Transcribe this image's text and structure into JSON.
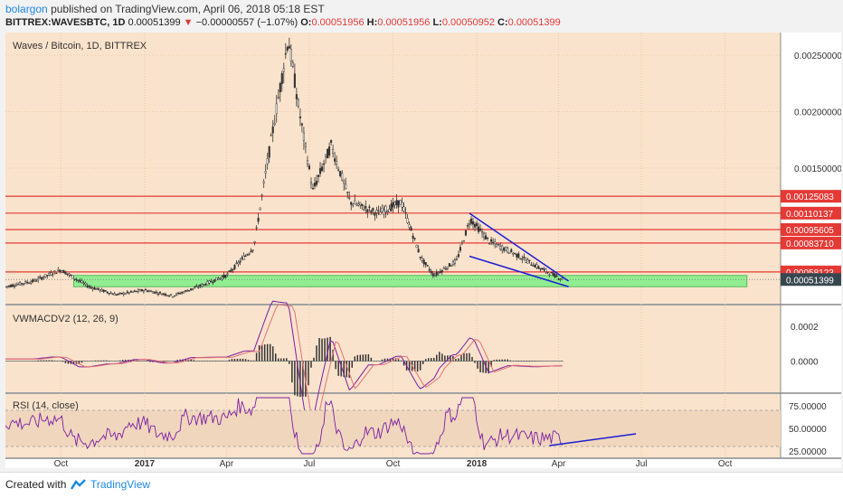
{
  "header": {
    "user": "bolargon",
    "published": "published on TradingView.com, April 06, 2018 05:18 EST",
    "symbol": "BITTREX:WAVESBTC, 1D",
    "last": "0.00051399",
    "change_arrow": "▼",
    "change": "−0.00000557 (−1.07%)",
    "o_label": "O:",
    "o": "0.00051956",
    "h_label": "H:",
    "h": "0.00051956",
    "l_label": "L:",
    "l": "0.00050952",
    "c_label": "C:",
    "c": "0.00051399"
  },
  "footer": {
    "created_with": "Created with",
    "brand": "TradingView"
  },
  "chart_data": [
    {
      "type": "candlestick",
      "title": "Waves / Bitcoin, 1D, BITTREX",
      "x_tick_labels": [
        "Oct",
        "2017",
        "Apr",
        "Jul",
        "Oct",
        "2018",
        "Apr",
        "Jul",
        "Oct"
      ],
      "x_tick_bold": [
        false,
        true,
        false,
        false,
        false,
        true,
        false,
        false,
        false
      ],
      "y_ticks": [
        0.0015,
        0.002,
        0.0025
      ],
      "y_tick_labels": [
        "0.00150000",
        "0.00200000",
        "0.00250000"
      ],
      "ylim": [
        0.0003,
        0.0027
      ],
      "grid": true,
      "price_series": [
        {
          "date": "2016-08",
          "price": 0.00045
        },
        {
          "date": "2016-09",
          "price": 0.0005
        },
        {
          "date": "2016-10",
          "price": 0.0006
        },
        {
          "date": "2016-11",
          "price": 0.00045
        },
        {
          "date": "2016-12",
          "price": 0.00038
        },
        {
          "date": "2017-01",
          "price": 0.00042
        },
        {
          "date": "2017-02",
          "price": 0.00037
        },
        {
          "date": "2017-03",
          "price": 0.00045
        },
        {
          "date": "2017-04",
          "price": 0.00055
        },
        {
          "date": "2017-05",
          "price": 0.0008
        },
        {
          "date": "2017-05-15",
          "price": 0.0015
        },
        {
          "date": "2017-06-08",
          "price": 0.00265
        },
        {
          "date": "2017-06-20",
          "price": 0.002
        },
        {
          "date": "2017-07-05",
          "price": 0.0013
        },
        {
          "date": "2017-07-25",
          "price": 0.0017
        },
        {
          "date": "2017-08-15",
          "price": 0.0012
        },
        {
          "date": "2017-09-15",
          "price": 0.0011
        },
        {
          "date": "2017-10-10",
          "price": 0.0012
        },
        {
          "date": "2017-11-01",
          "price": 0.0007
        },
        {
          "date": "2017-11-15",
          "price": 0.00055
        },
        {
          "date": "2017-12-10",
          "price": 0.00068
        },
        {
          "date": "2017-12-25",
          "price": 0.00105
        },
        {
          "date": "2018-01-15",
          "price": 0.00085
        },
        {
          "date": "2018-02-10",
          "price": 0.00075
        },
        {
          "date": "2018-03-10",
          "price": 0.00062
        },
        {
          "date": "2018-04-06",
          "price": 0.00051399
        }
      ],
      "horizontal_levels": [
        {
          "value": 0.00125083,
          "label": "0.00125083",
          "color": "#e53935"
        },
        {
          "value": 0.00110137,
          "label": "0.00110137",
          "color": "#e53935"
        },
        {
          "value": 0.00095605,
          "label": "0.00095605",
          "color": "#e53935"
        },
        {
          "value": 0.0008371,
          "label": "0.00083710",
          "color": "#e53935"
        },
        {
          "value": 0.00058123,
          "label": "0.00058123",
          "color": "#e53935"
        }
      ],
      "current_price": {
        "value": 0.00051399,
        "label": "0.00051399",
        "color": "#37474f"
      },
      "support_zone": {
        "from": 0.00045,
        "to": 0.00055,
        "color": "#90ee90"
      },
      "wedge_lines": [
        {
          "from": {
            "date": "2017-12-24",
            "price": 0.0011
          },
          "to": {
            "date": "2018-04-12",
            "price": 0.0005
          }
        },
        {
          "from": {
            "date": "2017-12-24",
            "price": 0.00072
          },
          "to": {
            "date": "2018-04-12",
            "price": 0.00045
          }
        }
      ],
      "colors": {
        "background": "#fae3cc",
        "candles": "#333333",
        "levels": "#e53935",
        "wedge": "#1e1ed2"
      }
    },
    {
      "type": "line",
      "title": "VWMACDV2 (12, 26, 9)",
      "y_ticks": [
        0.0002,
        0.0
      ],
      "y_tick_labels": [
        "0.0002",
        "0.0000"
      ],
      "ylim": [
        -0.00018,
        0.00032
      ],
      "series": [
        {
          "values_shape": "macd",
          "color": "#7b1fa2"
        },
        {
          "values_shape": "signal",
          "color": "#e57373"
        }
      ],
      "histogram_color": "#333333"
    },
    {
      "type": "line",
      "title": "RSI (14, close)",
      "y_ticks": [
        75,
        50,
        25
      ],
      "y_tick_labels": [
        "75.00000",
        "50.00000",
        "25.00000"
      ],
      "ylim": [
        18,
        88
      ],
      "band": [
        30,
        70
      ],
      "series": [
        {
          "color": "#7b1fa2"
        }
      ],
      "trendline": {
        "from": {
          "date": "2018-03-22",
          "value": 31
        },
        "to": {
          "date": "2018-06-25",
          "value": 44
        },
        "color": "#1e1ed2"
      }
    }
  ]
}
